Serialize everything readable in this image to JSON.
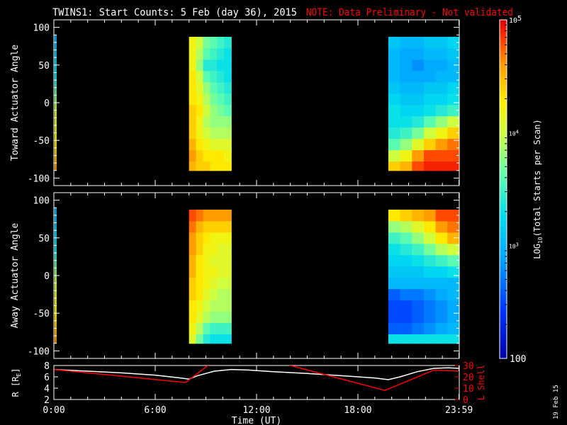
{
  "title": "TWINS1: Start Counts:  5 Feb (day  36), 2015",
  "note": "NOTE: Data Preliminary - Not validated",
  "date_stamp": "19 Feb 15",
  "colors": {
    "background": "#000000",
    "axes": "#ffffff",
    "note": "#ff0000",
    "r_line": "#ffffff",
    "lshell_line": "#ff0000"
  },
  "chart_data": [
    {
      "type": "heatmap",
      "name": "toward",
      "ylabel": "Toward Actuator Angle",
      "ylim": [
        -110,
        110
      ],
      "yticks": [
        100,
        50,
        0,
        -50,
        -100
      ],
      "x_hours": [
        8.0,
        8.5,
        9.0,
        9.5,
        10.0,
        10.5,
        20.0,
        20.75,
        21.5,
        22.25,
        23.0,
        23.75
      ],
      "y_angles": [
        -85,
        -70,
        -55,
        -40,
        -25,
        -10,
        5,
        20,
        35,
        50,
        65,
        80
      ],
      "log10_values": [
        [
          4.5,
          4.4,
          4.4,
          4.3,
          4.3,
          4.3,
          4.4,
          4.5,
          4.8,
          4.9,
          4.9,
          4.9
        ],
        [
          4.6,
          4.4,
          4.3,
          4.3,
          4.3,
          4.2,
          4.0,
          4.2,
          4.6,
          4.8,
          4.8,
          4.8
        ],
        [
          4.5,
          4.3,
          4.2,
          4.1,
          4.1,
          4.1,
          3.6,
          3.8,
          4.1,
          4.4,
          4.6,
          4.7
        ],
        [
          4.4,
          4.2,
          4.0,
          3.9,
          3.9,
          3.9,
          3.4,
          3.5,
          3.7,
          4.0,
          4.2,
          4.4
        ],
        [
          4.4,
          4.2,
          3.9,
          3.8,
          3.8,
          3.8,
          3.3,
          3.3,
          3.4,
          3.6,
          3.8,
          4.0
        ],
        [
          4.4,
          4.3,
          4.0,
          3.8,
          3.7,
          3.6,
          3.3,
          3.2,
          3.2,
          3.3,
          3.4,
          3.5
        ],
        [
          4.3,
          4.2,
          3.9,
          3.7,
          3.6,
          3.5,
          3.2,
          3.1,
          3.1,
          3.2,
          3.2,
          3.3
        ],
        [
          4.3,
          4.1,
          3.8,
          3.6,
          3.5,
          3.4,
          3.1,
          3.0,
          3.0,
          3.1,
          3.1,
          3.2
        ],
        [
          4.3,
          4.0,
          3.6,
          3.5,
          3.4,
          3.3,
          3.0,
          2.9,
          2.9,
          2.9,
          3.0,
          3.0
        ],
        [
          4.2,
          3.8,
          3.4,
          3.4,
          3.3,
          3.3,
          3.0,
          2.9,
          2.8,
          2.9,
          2.9,
          3.0
        ],
        [
          4.2,
          3.9,
          3.6,
          3.5,
          3.4,
          3.3,
          3.0,
          2.9,
          2.9,
          3.0,
          3.0,
          3.1
        ],
        [
          4.2,
          4.0,
          3.7,
          3.6,
          3.5,
          3.4,
          3.1,
          3.0,
          3.0,
          3.1,
          3.1,
          3.2
        ]
      ]
    },
    {
      "type": "heatmap",
      "name": "away",
      "ylabel": "Away Actuator Angle",
      "ylim": [
        -110,
        110
      ],
      "yticks": [
        100,
        50,
        0,
        -50,
        -100
      ],
      "x_hours": [
        8.0,
        8.5,
        9.0,
        9.5,
        10.0,
        10.5,
        20.0,
        20.75,
        21.5,
        22.25,
        23.0,
        23.75
      ],
      "y_angles": [
        -85,
        -70,
        -55,
        -40,
        -25,
        -10,
        5,
        20,
        35,
        50,
        65,
        80
      ],
      "log10_values": [
        [
          4.1,
          3.7,
          3.4,
          3.3,
          3.3,
          3.3,
          3.3,
          3.3,
          3.3,
          3.3,
          3.3,
          3.3
        ],
        [
          4.2,
          3.9,
          3.6,
          3.5,
          3.5,
          3.5,
          2.6,
          2.6,
          2.7,
          2.8,
          2.9,
          3.0
        ],
        [
          4.3,
          4.1,
          3.9,
          3.8,
          3.8,
          3.8,
          2.5,
          2.5,
          2.6,
          2.7,
          2.8,
          2.9
        ],
        [
          4.3,
          4.2,
          4.0,
          3.9,
          3.9,
          3.9,
          2.5,
          2.5,
          2.6,
          2.7,
          2.8,
          2.9
        ],
        [
          4.4,
          4.3,
          4.1,
          4.0,
          3.9,
          3.9,
          2.6,
          2.7,
          2.7,
          2.8,
          2.9,
          3.0
        ],
        [
          4.4,
          4.3,
          4.2,
          4.1,
          4.0,
          4.0,
          3.0,
          3.0,
          3.0,
          3.0,
          3.0,
          3.0
        ],
        [
          4.5,
          4.3,
          4.2,
          4.2,
          4.1,
          4.1,
          3.1,
          3.1,
          3.1,
          3.2,
          3.2,
          3.3
        ],
        [
          4.5,
          4.3,
          4.2,
          4.1,
          4.1,
          4.1,
          3.2,
          3.2,
          3.3,
          3.4,
          3.5,
          3.6
        ],
        [
          4.6,
          4.4,
          4.2,
          4.2,
          4.1,
          4.1,
          3.3,
          3.4,
          3.5,
          3.7,
          3.9,
          4.0
        ],
        [
          4.6,
          4.4,
          4.3,
          4.2,
          4.2,
          4.2,
          3.5,
          3.6,
          3.8,
          4.0,
          4.3,
          4.5
        ],
        [
          4.7,
          4.5,
          4.4,
          4.4,
          4.4,
          4.4,
          3.8,
          3.9,
          4.1,
          4.3,
          4.6,
          4.7
        ],
        [
          4.8,
          4.7,
          4.6,
          4.6,
          4.6,
          4.6,
          4.3,
          4.4,
          4.5,
          4.6,
          4.8,
          4.8
        ]
      ]
    },
    {
      "type": "line",
      "name": "orbit",
      "ylabel": "R [R",
      "ylabel_sub": "E",
      "ylabel_close": "]",
      "ylim": [
        2,
        8
      ],
      "yticks": [
        8,
        6,
        4,
        2
      ],
      "y2label": "L Shell",
      "y2lim": [
        0,
        30
      ],
      "y2ticks": [
        30,
        20,
        10,
        0
      ],
      "xlabel": "Time (UT)",
      "xlim": [
        0,
        24
      ],
      "xtick_values": [
        0,
        6,
        12,
        18,
        23.983
      ],
      "xtick_labels": [
        "0:00",
        "6:00",
        "12:00",
        "18:00",
        "23:59"
      ],
      "series": [
        {
          "axis": "left",
          "x": [
            0,
            2,
            4,
            6,
            7.5,
            8.0,
            8.5,
            9.5,
            10.5,
            11.5,
            13,
            15,
            17,
            19,
            19.8,
            20.5,
            21.5,
            22.5,
            23.3,
            24
          ],
          "y": [
            7.3,
            7.0,
            6.7,
            6.3,
            5.8,
            5.6,
            6.2,
            7.0,
            7.3,
            7.2,
            6.9,
            6.6,
            6.2,
            5.8,
            5.5,
            6.0,
            6.9,
            7.5,
            7.6,
            7.5
          ]
        },
        {
          "axis": "right",
          "segments": [
            {
              "x": [
                0,
                7.8
              ],
              "y": [
                26.5,
                15
              ]
            },
            {
              "x": [
                7.8,
                9.3
              ],
              "y": [
                15,
                32
              ]
            },
            {
              "x": [
                13.5,
                19.6
              ],
              "y": [
                32,
                8
              ]
            },
            {
              "x": [
                19.6,
                22.5
              ],
              "y": [
                8,
                26
              ]
            },
            {
              "x": [
                22.5,
                24
              ],
              "y": [
                26,
                25
              ]
            }
          ]
        }
      ]
    },
    {
      "type": "colorbar",
      "name": "colorbar",
      "label_prefix": "LOG",
      "label_sub": "10",
      "label_suffix": "(Total Starts per Scan)",
      "scale": "log",
      "range": [
        100,
        100000
      ],
      "tick_labels": [
        {
          "log10": 5,
          "base": "10",
          "exp": "5"
        },
        {
          "log10": 4,
          "base": "10",
          "exp": "4"
        },
        {
          "log10": 3,
          "base": "10",
          "exp": "3"
        },
        {
          "log10": 2,
          "plain": "100"
        }
      ]
    }
  ]
}
